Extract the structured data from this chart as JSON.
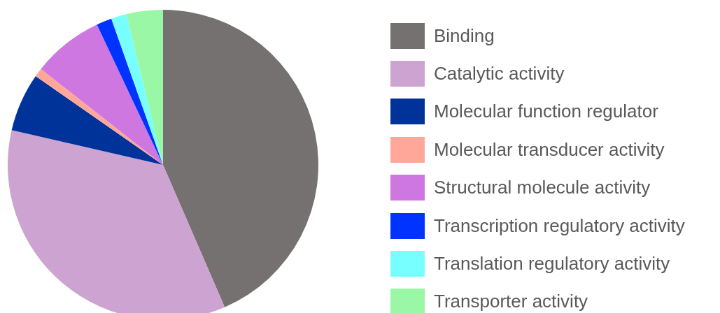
{
  "chart_data": {
    "type": "pie",
    "categories": [
      "Binding",
      "Catalytic activity",
      "Molecular function regulator",
      "Molecular transducer activity",
      "Structural molecule activity",
      "Transcription regulatory activity",
      "Translation regulatory activity",
      "Transporter activity"
    ],
    "values": [
      43.5,
      35.1,
      6.1,
      0.9,
      7.4,
      1.6,
      1.6,
      3.8
    ],
    "colors": [
      "#767171",
      "#cca3d1",
      "#003399",
      "#ffa899",
      "#cf77e0",
      "#0033ff",
      "#77ffff",
      "#99f7a5"
    ],
    "legend": "right"
  }
}
